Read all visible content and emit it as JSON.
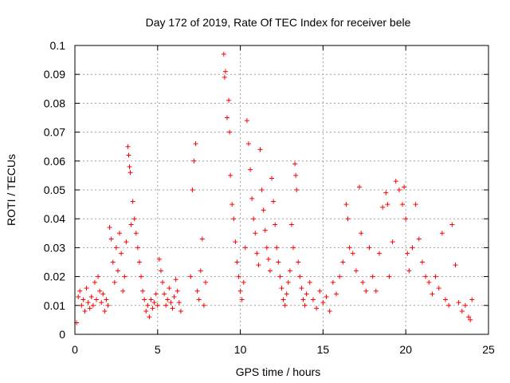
{
  "chart_data": {
    "type": "scatter",
    "title": "Day 172 of 2019, Rate Of TEC Index for receiver bele",
    "xlabel": "GPS time / hours",
    "ylabel": "ROTI / TECUs",
    "xlim": [
      0,
      25
    ],
    "ylim": [
      0,
      0.1
    ],
    "xticks": [
      0,
      5,
      10,
      15,
      20,
      25
    ],
    "xtick_labels": [
      "0",
      "5",
      "10",
      "15",
      "20",
      "25"
    ],
    "yticks": [
      0,
      0.01,
      0.02,
      0.03,
      0.04,
      0.05,
      0.06,
      0.07,
      0.08,
      0.09,
      0.1
    ],
    "ytick_labels": [
      "0",
      "0.01",
      "0.02",
      "0.03",
      "0.04",
      "0.05",
      "0.06",
      "0.07",
      "0.08",
      "0.09",
      "0.1"
    ],
    "grid": true,
    "legend": "none",
    "marker": "plus",
    "color": "#ff0000",
    "series": [
      {
        "points": [
          [
            0.1,
            0.004
          ],
          [
            0.2,
            0.013
          ],
          [
            0.3,
            0.015
          ],
          [
            0.4,
            0.01
          ],
          [
            0.5,
            0.012
          ],
          [
            0.6,
            0.008
          ],
          [
            0.7,
            0.016
          ],
          [
            0.8,
            0.011
          ],
          [
            0.9,
            0.009
          ],
          [
            1.0,
            0.013
          ],
          [
            1.1,
            0.01
          ],
          [
            1.2,
            0.018
          ],
          [
            1.3,
            0.012
          ],
          [
            1.4,
            0.02
          ],
          [
            1.5,
            0.015
          ],
          [
            1.6,
            0.011
          ],
          [
            1.7,
            0.014
          ],
          [
            1.8,
            0.008
          ],
          [
            1.9,
            0.012
          ],
          [
            2.0,
            0.01
          ],
          [
            2.1,
            0.037
          ],
          [
            2.2,
            0.033
          ],
          [
            2.3,
            0.025
          ],
          [
            2.4,
            0.018
          ],
          [
            2.5,
            0.03
          ],
          [
            2.6,
            0.022
          ],
          [
            2.7,
            0.035
          ],
          [
            2.8,
            0.028
          ],
          [
            2.9,
            0.015
          ],
          [
            3.0,
            0.02
          ],
          [
            3.1,
            0.032
          ],
          [
            3.2,
            0.065
          ],
          [
            3.25,
            0.062
          ],
          [
            3.3,
            0.058
          ],
          [
            3.35,
            0.056
          ],
          [
            3.4,
            0.038
          ],
          [
            3.5,
            0.046
          ],
          [
            3.6,
            0.04
          ],
          [
            3.7,
            0.035
          ],
          [
            3.8,
            0.03
          ],
          [
            3.9,
            0.025
          ],
          [
            4.0,
            0.02
          ],
          [
            4.1,
            0.015
          ],
          [
            4.2,
            0.012
          ],
          [
            4.3,
            0.008
          ],
          [
            4.4,
            0.01
          ],
          [
            4.5,
            0.006
          ],
          [
            4.6,
            0.012
          ],
          [
            4.7,
            0.009
          ],
          [
            4.8,
            0.011
          ],
          [
            4.9,
            0.014
          ],
          [
            5.0,
            0.01
          ],
          [
            5.1,
            0.026
          ],
          [
            5.2,
            0.022
          ],
          [
            5.3,
            0.018
          ],
          [
            5.4,
            0.014
          ],
          [
            5.5,
            0.01
          ],
          [
            5.6,
            0.012
          ],
          [
            5.7,
            0.016
          ],
          [
            5.8,
            0.011
          ],
          [
            5.9,
            0.009
          ],
          [
            6.0,
            0.013
          ],
          [
            6.1,
            0.019
          ],
          [
            6.2,
            0.015
          ],
          [
            6.3,
            0.011
          ],
          [
            6.4,
            0.008
          ],
          [
            7.1,
            0.05
          ],
          [
            7.2,
            0.06
          ],
          [
            7.3,
            0.066
          ],
          [
            7.0,
            0.02
          ],
          [
            7.4,
            0.015
          ],
          [
            7.5,
            0.012
          ],
          [
            7.6,
            0.022
          ],
          [
            7.7,
            0.033
          ],
          [
            7.8,
            0.01
          ],
          [
            7.9,
            0.018
          ],
          [
            9.0,
            0.097
          ],
          [
            9.1,
            0.091
          ],
          [
            9.05,
            0.089
          ],
          [
            9.2,
            0.075
          ],
          [
            9.3,
            0.081
          ],
          [
            9.35,
            0.07
          ],
          [
            9.4,
            0.055
          ],
          [
            9.5,
            0.045
          ],
          [
            9.6,
            0.04
          ],
          [
            9.7,
            0.032
          ],
          [
            9.8,
            0.025
          ],
          [
            9.9,
            0.02
          ],
          [
            10.0,
            0.015
          ],
          [
            10.1,
            0.012
          ],
          [
            10.2,
            0.018
          ],
          [
            10.3,
            0.03
          ],
          [
            10.4,
            0.074
          ],
          [
            10.5,
            0.066
          ],
          [
            10.6,
            0.057
          ],
          [
            10.7,
            0.047
          ],
          [
            10.8,
            0.04
          ],
          [
            10.9,
            0.035
          ],
          [
            11.0,
            0.028
          ],
          [
            11.1,
            0.024
          ],
          [
            11.2,
            0.064
          ],
          [
            11.3,
            0.05
          ],
          [
            11.4,
            0.043
          ],
          [
            11.5,
            0.036
          ],
          [
            11.6,
            0.03
          ],
          [
            11.7,
            0.026
          ],
          [
            11.8,
            0.022
          ],
          [
            11.9,
            0.054
          ],
          [
            12.0,
            0.046
          ],
          [
            12.1,
            0.038
          ],
          [
            12.2,
            0.03
          ],
          [
            12.3,
            0.025
          ],
          [
            12.4,
            0.02
          ],
          [
            12.5,
            0.016
          ],
          [
            12.6,
            0.012
          ],
          [
            12.7,
            0.01
          ],
          [
            12.8,
            0.014
          ],
          [
            12.9,
            0.018
          ],
          [
            13.0,
            0.022
          ],
          [
            13.1,
            0.038
          ],
          [
            13.2,
            0.03
          ],
          [
            13.3,
            0.059
          ],
          [
            13.35,
            0.055
          ],
          [
            13.4,
            0.05
          ],
          [
            13.5,
            0.025
          ],
          [
            13.6,
            0.02
          ],
          [
            13.7,
            0.016
          ],
          [
            13.8,
            0.012
          ],
          [
            13.9,
            0.01
          ],
          [
            14.0,
            0.014
          ],
          [
            14.2,
            0.018
          ],
          [
            14.4,
            0.012
          ],
          [
            14.6,
            0.009
          ],
          [
            14.8,
            0.015
          ],
          [
            15.0,
            0.011
          ],
          [
            15.2,
            0.013
          ],
          [
            15.4,
            0.008
          ],
          [
            15.6,
            0.018
          ],
          [
            15.8,
            0.014
          ],
          [
            16.0,
            0.02
          ],
          [
            16.2,
            0.025
          ],
          [
            16.4,
            0.045
          ],
          [
            16.5,
            0.04
          ],
          [
            16.6,
            0.03
          ],
          [
            16.8,
            0.028
          ],
          [
            17.0,
            0.022
          ],
          [
            17.2,
            0.051
          ],
          [
            17.3,
            0.035
          ],
          [
            17.4,
            0.018
          ],
          [
            17.6,
            0.015
          ],
          [
            17.8,
            0.03
          ],
          [
            18.0,
            0.02
          ],
          [
            18.2,
            0.015
          ],
          [
            18.4,
            0.028
          ],
          [
            18.6,
            0.044
          ],
          [
            18.8,
            0.049
          ],
          [
            18.9,
            0.045
          ],
          [
            19.0,
            0.02
          ],
          [
            19.2,
            0.032
          ],
          [
            19.4,
            0.053
          ],
          [
            19.6,
            0.05
          ],
          [
            19.8,
            0.045
          ],
          [
            19.9,
            0.051
          ],
          [
            20.0,
            0.04
          ],
          [
            20.1,
            0.028
          ],
          [
            20.2,
            0.022
          ],
          [
            20.4,
            0.03
          ],
          [
            20.6,
            0.045
          ],
          [
            20.8,
            0.033
          ],
          [
            21.0,
            0.025
          ],
          [
            21.2,
            0.02
          ],
          [
            21.4,
            0.018
          ],
          [
            21.6,
            0.014
          ],
          [
            21.8,
            0.02
          ],
          [
            22.0,
            0.016
          ],
          [
            22.2,
            0.035
          ],
          [
            22.4,
            0.012
          ],
          [
            22.6,
            0.01
          ],
          [
            22.8,
            0.038
          ],
          [
            23.0,
            0.024
          ],
          [
            23.2,
            0.011
          ],
          [
            23.4,
            0.008
          ],
          [
            23.6,
            0.01
          ],
          [
            23.8,
            0.006
          ],
          [
            23.9,
            0.005
          ],
          [
            24.0,
            0.012
          ]
        ]
      }
    ]
  }
}
